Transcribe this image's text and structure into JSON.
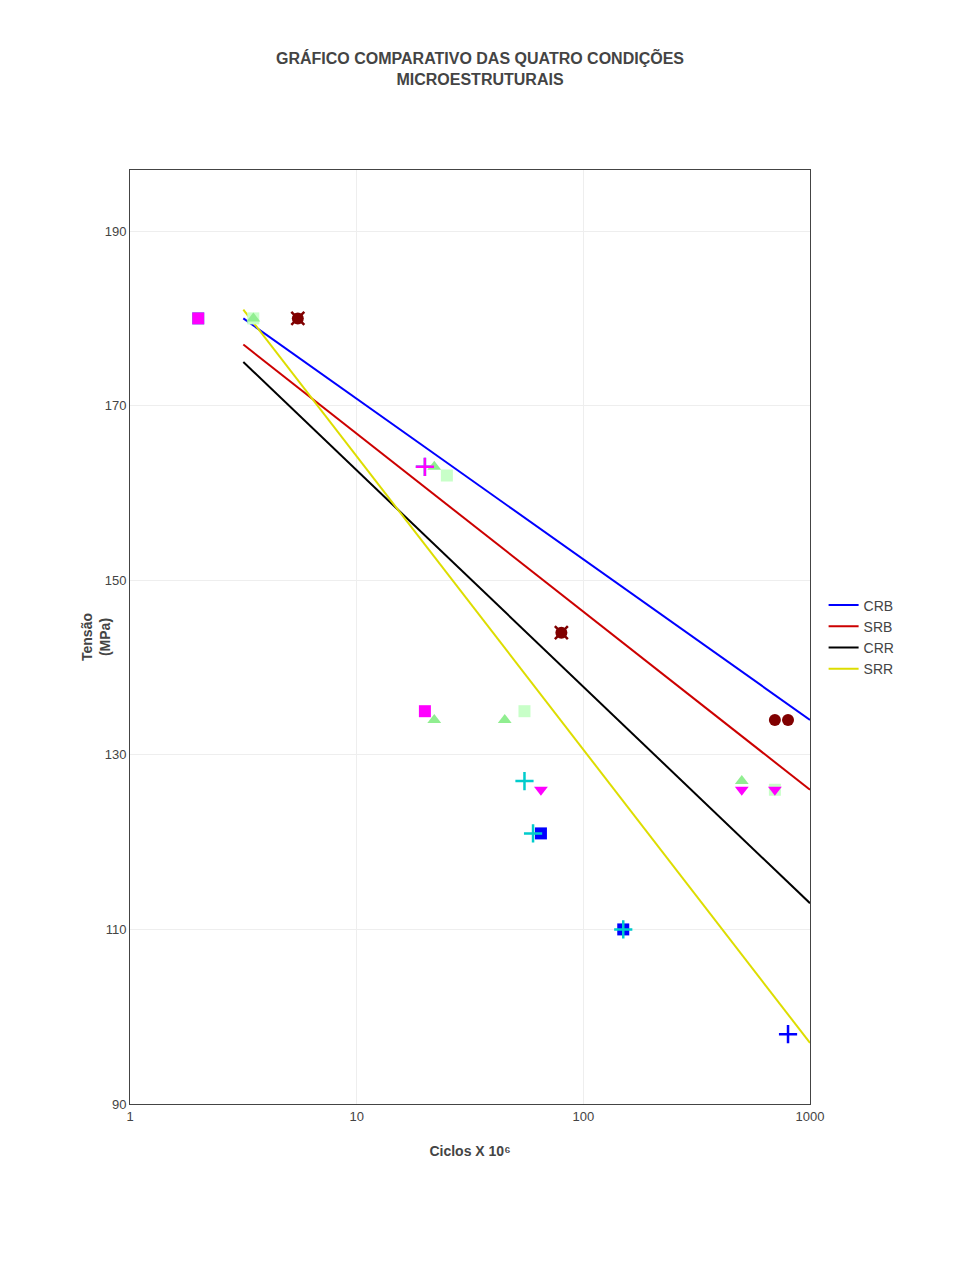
{
  "chart_data": {
    "type": "scatter",
    "title": "GRÁFICO COMPARATIVO DAS QUATRO CONDIÇÕES\nMICROESTRUTURAIS",
    "x_label": "Ciclos X 10⁶",
    "y_label": "Tensão\n(MPa)",
    "log": "x",
    "xlim": [
      1,
      1000
    ],
    "xticks": [
      1,
      10,
      100,
      1000
    ],
    "ylim": [
      90,
      197
    ],
    "yticks": [
      90,
      110,
      130,
      150,
      170,
      190
    ],
    "grid": true,
    "legend": "right",
    "series": [
      {
        "name": "CRB",
        "type": "line",
        "color": "#0000ff",
        "x": [
          3.1622776601683795,
          1000
        ],
        "values": [
          180,
          134
        ]
      },
      {
        "name": "SRB",
        "type": "line",
        "color": "#cc0000",
        "x": [
          3.1622776601683795,
          1000
        ],
        "values": [
          177,
          126
        ]
      },
      {
        "name": "CRR",
        "type": "line",
        "color": "#000000",
        "x": [
          3.1622776601683795,
          1000
        ],
        "values": [
          175,
          113
        ]
      },
      {
        "name": "SRR",
        "type": "line",
        "color": "#dddd00",
        "x": [
          3.1622776601683795,
          1000
        ],
        "values": [
          181,
          97
        ]
      },
      {
        "type": "scatter",
        "color": "#c8ffc8",
        "marker": "square",
        "x": [
          3.5
        ],
        "values": [
          180
        ]
      },
      {
        "type": "scatter",
        "color": "#c8ffc8",
        "marker": "square",
        "x": [
          25
        ],
        "values": [
          162
        ]
      },
      {
        "type": "scatter",
        "color": "#c8ffc8",
        "marker": "square",
        "x": [
          55
        ],
        "values": [
          135
        ]
      },
      {
        "type": "scatter",
        "color": "#0000ff",
        "marker": "square",
        "x": [
          65
        ],
        "values": [
          121
        ]
      },
      {
        "type": "scatter",
        "color": "#0000ff",
        "marker": "square",
        "x": [
          150
        ],
        "values": [
          110
        ]
      },
      {
        "type": "scatter",
        "color": "#c8ffc8",
        "marker": "square",
        "x": [
          700
        ],
        "values": [
          126
        ]
      },
      {
        "type": "scatter",
        "color": "#00cccc",
        "marker": "square",
        "x": [
          2.0
        ],
        "values": [
          180
        ]
      },
      {
        "type": "scatter",
        "color": "#90ee90",
        "marker": "triangle-up",
        "x": [
          3.5
        ],
        "values": [
          180
        ]
      },
      {
        "type": "scatter",
        "color": "#00cccc",
        "marker": "plus",
        "x": [
          20
        ],
        "values": [
          163
        ]
      },
      {
        "type": "scatter",
        "color": "#90ee90",
        "marker": "triangle-up",
        "x": [
          22
        ],
        "values": [
          163
        ]
      },
      {
        "type": "scatter",
        "color": "#ff00ff",
        "marker": "square",
        "x": [
          20
        ],
        "values": [
          135
        ]
      },
      {
        "type": "scatter",
        "color": "#90ee90",
        "marker": "triangle-up",
        "x": [
          22
        ],
        "values": [
          134
        ]
      },
      {
        "type": "scatter",
        "color": "#90ee90",
        "marker": "triangle-up",
        "x": [
          45
        ],
        "values": [
          134
        ]
      },
      {
        "type": "scatter",
        "color": "#00cccc",
        "marker": "plus",
        "x": [
          55
        ],
        "values": [
          127
        ]
      },
      {
        "type": "scatter",
        "color": "#00cccc",
        "marker": "plus",
        "x": [
          60
        ],
        "values": [
          121
        ]
      },
      {
        "type": "scatter",
        "color": "#00cccc",
        "marker": "plus",
        "x": [
          150
        ],
        "values": [
          110
        ]
      },
      {
        "type": "scatter",
        "color": "#0000ff",
        "marker": "plus",
        "x": [
          800
        ],
        "values": [
          98
        ]
      },
      {
        "type": "scatter",
        "color": "#90ee90",
        "marker": "triangle-up",
        "x": [
          500
        ],
        "values": [
          127
        ]
      },
      {
        "type": "scatter",
        "color": "#ff00ff",
        "marker": "square",
        "x": [
          2.0
        ],
        "values": [
          180
        ]
      },
      {
        "type": "scatter",
        "color": "#800000",
        "marker": "circle",
        "x": [
          5.5
        ],
        "values": [
          180
        ]
      },
      {
        "type": "scatter",
        "color": "#ff00ff",
        "marker": "plus",
        "x": [
          20
        ],
        "values": [
          163
        ]
      },
      {
        "type": "scatter",
        "color": "#800000",
        "marker": "circle",
        "x": [
          80
        ],
        "values": [
          144
        ]
      },
      {
        "type": "scatter",
        "color": "#ff00ff",
        "marker": "triangle-down",
        "x": [
          65
        ],
        "values": [
          126
        ]
      },
      {
        "type": "scatter",
        "color": "#ff00ff",
        "marker": "triangle-down",
        "x": [
          500
        ],
        "values": [
          126
        ]
      },
      {
        "type": "scatter",
        "color": "#800000",
        "marker": "circle",
        "x": [
          700
        ],
        "values": [
          134
        ]
      },
      {
        "type": "scatter",
        "color": "#ff00ff",
        "marker": "triangle-down",
        "x": [
          700
        ],
        "values": [
          126
        ]
      },
      {
        "type": "scatter",
        "color": "#800000",
        "marker": "circle",
        "x": [
          800
        ],
        "values": [
          134
        ]
      },
      {
        "type": "scatter",
        "color": "#800000",
        "marker": "x",
        "x": [
          5.5
        ],
        "values": [
          180
        ]
      },
      {
        "type": "scatter",
        "color": "#800000",
        "marker": "x",
        "x": [
          80
        ],
        "values": [
          144
        ]
      }
    ]
  }
}
